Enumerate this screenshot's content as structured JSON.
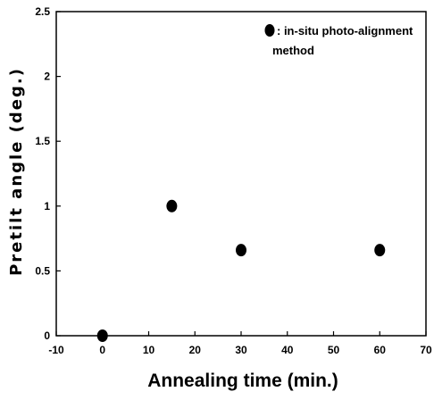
{
  "chart_data": {
    "type": "scatter",
    "xlabel": "Annealing time (min.)",
    "ylabel": "Pretilt angle (deg.)",
    "xlim": [
      -10,
      70
    ],
    "ylim": [
      0,
      2.5
    ],
    "x_ticks": [
      "-10",
      "0",
      "10",
      "20",
      "30",
      "40",
      "50",
      "60",
      "70"
    ],
    "y_ticks": [
      "0",
      "0.5",
      "1",
      "1.5",
      "2",
      "2.5"
    ],
    "series": [
      {
        "name": "in-situ photo-alignment method",
        "marker": "circle",
        "color": "#000000",
        "points": [
          {
            "x": 0,
            "y": 0
          },
          {
            "x": 15,
            "y": 1.0
          },
          {
            "x": 30,
            "y": 0.66
          },
          {
            "x": 60,
            "y": 0.66
          }
        ]
      }
    ],
    "legend": {
      "placement": "top-right",
      "text_line1": ": in-situ photo-alignment",
      "text_line2": "method"
    },
    "grid": false
  }
}
